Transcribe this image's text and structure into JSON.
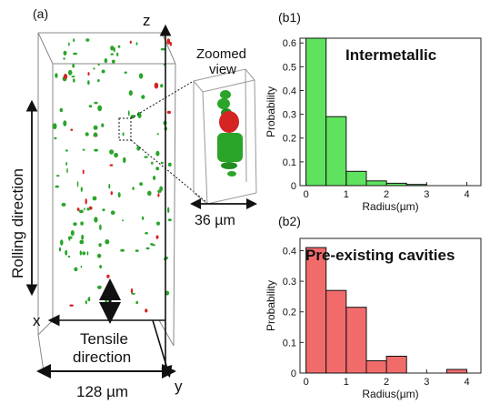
{
  "panels": {
    "a": {
      "label": "(a)"
    },
    "b1": {
      "label": "(b1)"
    },
    "b2": {
      "label": "(b2)"
    }
  },
  "volume": {
    "axis_z": "z",
    "axis_x": "x",
    "axis_y": "y",
    "rolling_direction": "Rolling direction",
    "tensile_line1": "Tensile",
    "tensile_line2": "direction",
    "zoom_line1": "Zoomed",
    "zoom_line2": "view",
    "zoom_scale": "36 µm",
    "base_scale": "128 µm",
    "particle_colors": {
      "intermetallic": "#2aa52a",
      "cavity": "#d42424"
    }
  },
  "chart_data": [
    {
      "type": "bar",
      "panel": "b1",
      "title": "Intermetallic",
      "xlabel": "Radius(µm)",
      "ylabel": "Probability",
      "bin_edges": [
        0,
        0.5,
        1,
        1.5,
        2,
        2.5,
        3
      ],
      "values": [
        0.62,
        0.29,
        0.06,
        0.02,
        0.01,
        0.005
      ],
      "xlim": [
        -0.15,
        4.35
      ],
      "ylim": [
        0,
        0.62
      ],
      "xticks": [
        0,
        1,
        2,
        3,
        4
      ],
      "yticks": [
        0,
        0.1,
        0.2,
        0.3,
        0.4,
        0.5,
        0.6
      ],
      "color": "#5fe35f",
      "edge_color": "#111111"
    },
    {
      "type": "bar",
      "panel": "b2",
      "title": "Pre-existing cavities",
      "xlabel": "Radius(µm)",
      "ylabel": "Probability",
      "bin_edges": [
        0,
        0.5,
        1,
        1.5,
        2,
        2.5,
        3,
        3.5,
        4
      ],
      "values": [
        0.41,
        0.27,
        0.215,
        0.04,
        0.055,
        0.0,
        0.0,
        0.012
      ],
      "xlim": [
        -0.15,
        4.35
      ],
      "ylim": [
        0,
        0.44
      ],
      "xticks": [
        0,
        1,
        2,
        3,
        4
      ],
      "yticks": [
        0,
        0.1,
        0.2,
        0.3,
        0.4
      ],
      "color": "#f26b6b",
      "edge_color": "#111111"
    }
  ]
}
